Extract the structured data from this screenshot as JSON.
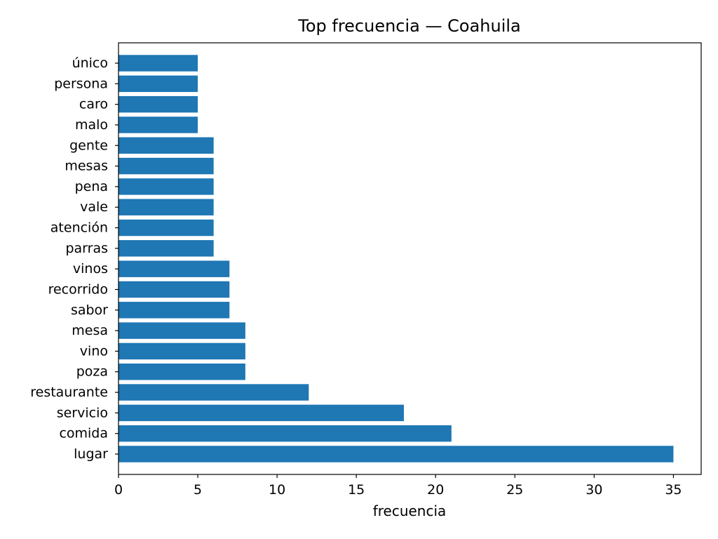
{
  "chart_data": {
    "type": "bar",
    "orientation": "horizontal",
    "title": "Top frecuencia — Coahuila",
    "xlabel": "frecuencia",
    "ylabel": "",
    "categories": [
      "lugar",
      "comida",
      "servicio",
      "restaurante",
      "poza",
      "vino",
      "mesa",
      "sabor",
      "recorrido",
      "vinos",
      "parras",
      "atención",
      "vale",
      "pena",
      "mesas",
      "gente",
      "malo",
      "caro",
      "persona",
      "único"
    ],
    "values": [
      35,
      21,
      18,
      12,
      8,
      8,
      8,
      7,
      7,
      7,
      6,
      6,
      6,
      6,
      6,
      6,
      5,
      5,
      5,
      5
    ],
    "xlim": [
      0,
      36.75
    ],
    "xticks": [
      0,
      5,
      10,
      15,
      20,
      25,
      30,
      35
    ],
    "bar_color": "#1f77b4",
    "grid": false,
    "legend": "none"
  }
}
